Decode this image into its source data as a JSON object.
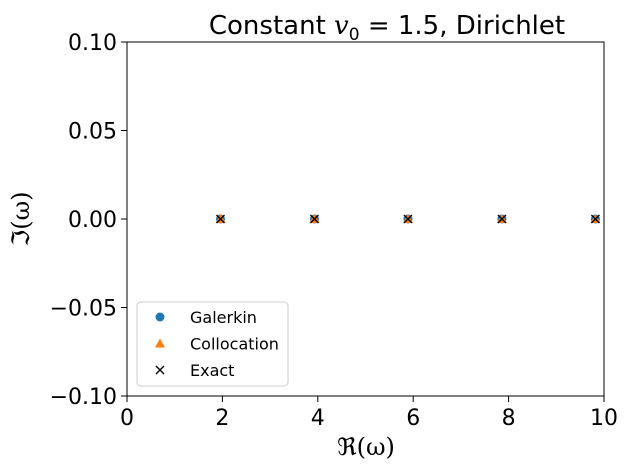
{
  "chart_data": {
    "type": "scatter",
    "title": "Constant v₀ = 1.5, Dirichlet",
    "title_parts": {
      "prefix": "Constant ",
      "var": "v",
      "sub": "0",
      "suffix": " = 1.5, Dirichlet"
    },
    "xlabel": "ℜ(ω)",
    "ylabel": "ℑ(ω)",
    "xlim": [
      0,
      10
    ],
    "ylim": [
      -0.1,
      0.1
    ],
    "xticks": [
      0,
      2,
      4,
      6,
      8,
      10
    ],
    "xtick_labels": [
      "0",
      "2",
      "4",
      "6",
      "8",
      "10"
    ],
    "yticks": [
      0.1,
      0.05,
      0.0,
      -0.05,
      -0.1
    ],
    "ytick_labels": [
      "0.10",
      "0.05",
      "0.00",
      "−0.05",
      "−0.10"
    ],
    "grid": false,
    "legend_position": "lower-left",
    "series": [
      {
        "name": "Galerkin",
        "marker": "circle",
        "color": "#1f77b4",
        "x": [
          1.96,
          3.93,
          5.89,
          7.86,
          9.82
        ],
        "y": [
          0,
          0,
          0,
          0,
          0
        ]
      },
      {
        "name": "Collocation",
        "marker": "triangle",
        "color": "#ff7f0e",
        "x": [
          1.96,
          3.93,
          5.89,
          7.86,
          9.82
        ],
        "y": [
          0,
          0,
          0,
          0,
          0
        ]
      },
      {
        "name": "Exact",
        "marker": "x",
        "color": "#000000",
        "x": [
          1.96,
          3.93,
          5.89,
          7.86,
          9.82
        ],
        "y": [
          0,
          0,
          0,
          0,
          0
        ]
      }
    ]
  }
}
